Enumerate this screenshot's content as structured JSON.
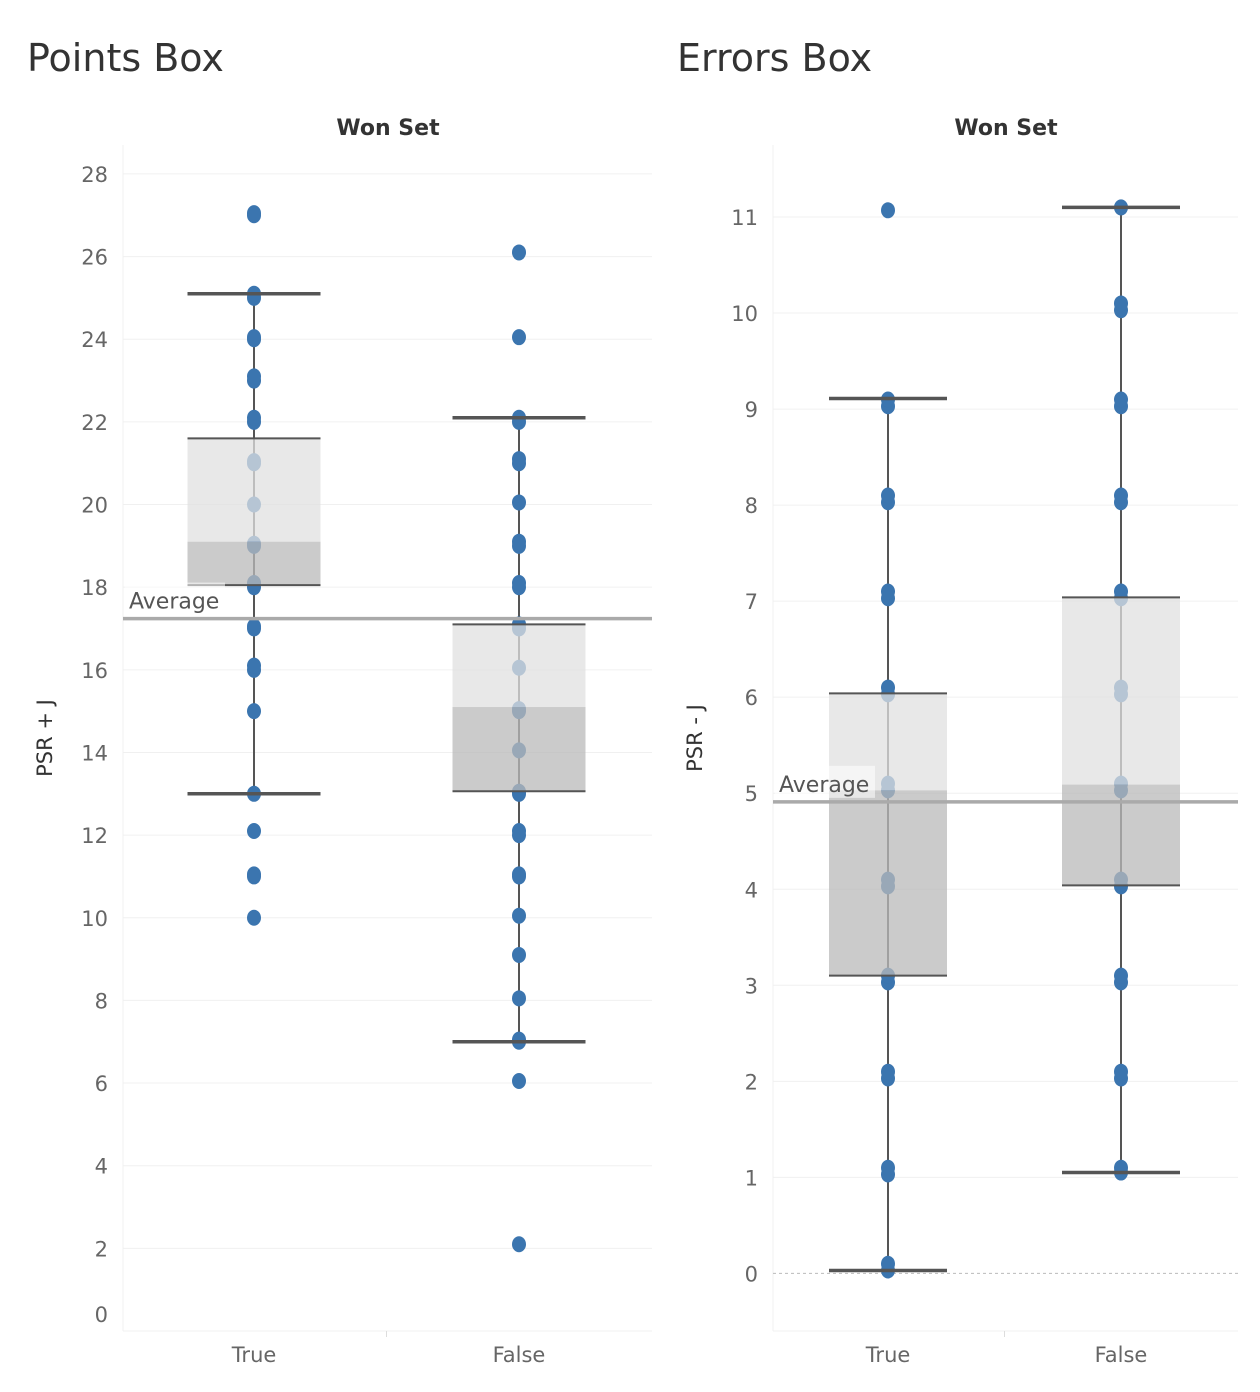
{
  "chart_data": [
    {
      "type": "box",
      "title": "Points Box",
      "header": "Won Set",
      "ylabel": "PSR + J",
      "ylim": [
        0,
        28.7
      ],
      "yticks": [
        0,
        2,
        4,
        6,
        8,
        10,
        12,
        14,
        16,
        18,
        20,
        22,
        24,
        26,
        28
      ],
      "categories": [
        "True",
        "False"
      ],
      "reference_line": {
        "label": "Average",
        "value": 17.24
      },
      "boxes": [
        {
          "category": "True",
          "whisker_low": 13,
          "q1": 18.05,
          "median": 19.1,
          "q3": 21.6,
          "whisker_high": 25.1,
          "points": [
            27,
            27.05,
            25,
            25.1,
            24,
            24.05,
            23,
            23.1,
            22,
            22.1,
            21,
            21.05,
            20,
            19,
            19.05,
            18,
            18.1,
            17,
            17.05,
            16,
            16.1,
            15,
            13,
            12.1,
            11,
            11.05,
            10
          ]
        },
        {
          "category": "False",
          "whisker_low": 7,
          "q1": 13.06,
          "median": 15.1,
          "q3": 17.1,
          "whisker_high": 22.1,
          "points": [
            26.1,
            24.05,
            22,
            22.1,
            21,
            21.1,
            20.05,
            19,
            19.1,
            18,
            18.1,
            17,
            17.1,
            16.05,
            15,
            15.05,
            14.05,
            13,
            13.05,
            12,
            12.1,
            11,
            11.05,
            10.05,
            9.1,
            8.05,
            7,
            7.05,
            6.05,
            2.1
          ]
        }
      ]
    },
    {
      "type": "box",
      "title": "Errors Box",
      "header": "Won Set",
      "ylabel": "PSR - J",
      "ylim": [
        -0.6,
        11.75
      ],
      "yticks": [
        0,
        1,
        2,
        3,
        4,
        5,
        6,
        7,
        8,
        9,
        10,
        11
      ],
      "categories": [
        "True",
        "False"
      ],
      "reference_line": {
        "label": "Average",
        "value": 4.91
      },
      "boxes": [
        {
          "category": "True",
          "whisker_low": 0.03,
          "q1": 3.1,
          "median": 5.03,
          "q3": 6.04,
          "whisker_high": 9.11,
          "points": [
            11.07,
            9.03,
            9.1,
            8.03,
            8.1,
            7.03,
            7.1,
            6.03,
            6.1,
            5.03,
            5.1,
            4.03,
            4.1,
            3.03,
            3.1,
            2.03,
            2.1,
            1.03,
            1.1,
            0.03,
            0.1
          ]
        },
        {
          "category": "False",
          "whisker_low": 1.05,
          "q1": 4.04,
          "median": 5.09,
          "q3": 7.04,
          "whisker_high": 11.1,
          "points": [
            11.1,
            10.03,
            10.1,
            9.03,
            9.1,
            8.03,
            8.1,
            7.03,
            7.1,
            6.03,
            6.1,
            5.03,
            5.1,
            4.03,
            4.1,
            3.03,
            3.1,
            2.03,
            2.1,
            1.05,
            1.1
          ]
        }
      ]
    }
  ],
  "colors": {
    "point": "#3b75af",
    "box_upper": "#e0e0e0",
    "box_lower": "#bababa",
    "whisker": "#555555",
    "reference": "#aaaaaa",
    "grid": "#f0f0f0"
  }
}
